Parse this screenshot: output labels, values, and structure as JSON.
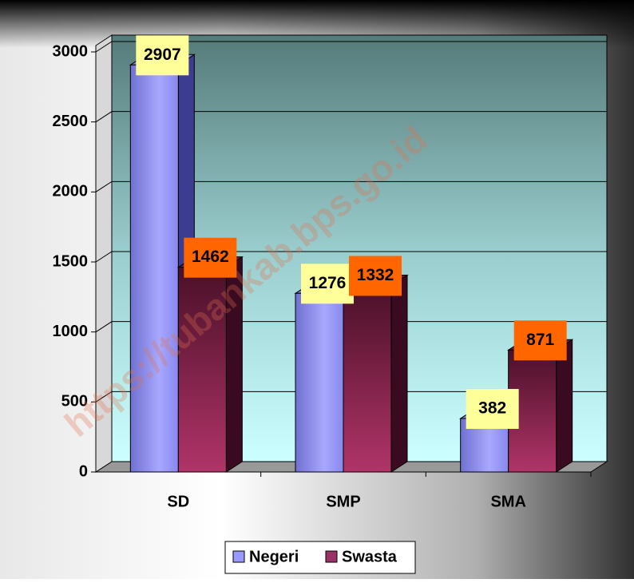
{
  "chart_data": {
    "type": "bar3d",
    "categories": [
      "SD",
      "SMP",
      "SMA"
    ],
    "series": [
      {
        "name": "Negeri",
        "color": "#9999ff",
        "label_color": "#ffff99",
        "values": [
          2907,
          1276,
          382
        ]
      },
      {
        "name": "Swasta",
        "color": "#993366",
        "label_color": "#ff6600",
        "values": [
          1462,
          1332,
          871
        ]
      }
    ],
    "ylim": [
      0,
      3000
    ],
    "yticks": [
      0,
      500,
      1000,
      1500,
      2000,
      2500,
      3000
    ],
    "grid": true,
    "legend": "bottom",
    "watermark": "https://tubankab.bps.go.id"
  }
}
